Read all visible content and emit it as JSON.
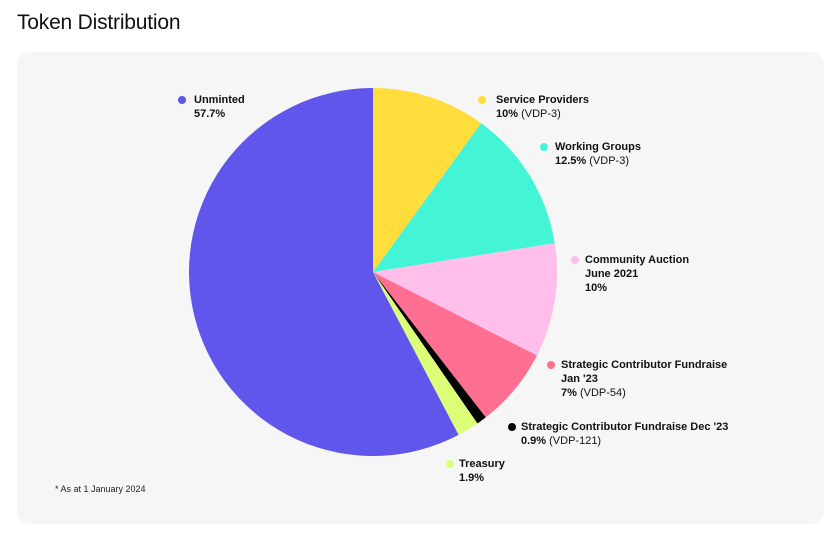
{
  "page": {
    "title": "Token Distribution"
  },
  "footnote": "* As at 1 January 2024",
  "chart_data": {
    "type": "pie",
    "title": "Token Distribution",
    "slices": [
      {
        "name": "Service Providers",
        "value": 10,
        "pct_label": "10%",
        "note": "(VDP-3)",
        "color": "#FFDD3C"
      },
      {
        "name": "Working Groups",
        "value": 12.5,
        "pct_label": "12.5%",
        "note": "(VDP-3)",
        "color": "#43F5D6"
      },
      {
        "name": "Community Auction\nJune 2021",
        "value": 10,
        "pct_label": "10%",
        "note": "",
        "color": "#FFBFEA"
      },
      {
        "name": "Strategic Contributor Fundraise\nJan '23",
        "value": 7,
        "pct_label": "7%",
        "note": "(VDP-54)",
        "color": "#FF6F91"
      },
      {
        "name": "Strategic Contributor Fundraise Dec '23",
        "value": 0.9,
        "pct_label": "0.9%",
        "note": "(VDP-121)",
        "color": "#000000"
      },
      {
        "name": "Treasury",
        "value": 1.9,
        "pct_label": "1.9%",
        "note": "",
        "color": "#DDFF78"
      },
      {
        "name": "Unminted",
        "value": 57.7,
        "pct_label": "57.7%",
        "note": "",
        "color": "#6156EC"
      }
    ],
    "start": "12 o'clock",
    "direction": "clockwise"
  }
}
